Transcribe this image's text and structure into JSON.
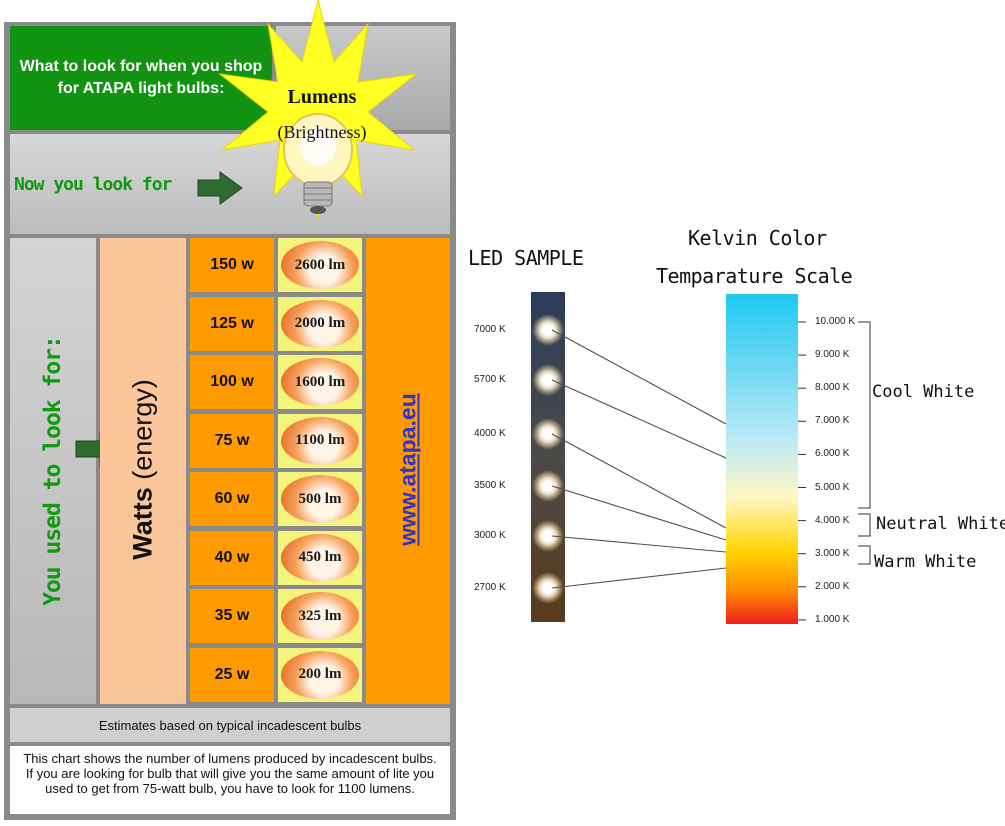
{
  "left_chart": {
    "header": "What to look for when you shop for ATAPA light bulbs:",
    "lumens_label": "Lumens",
    "brightness_label": "(Brightness)",
    "now_label": "Now you look for",
    "used_label": "You used to look for:",
    "watts_word": "Watts",
    "energy_word": "(energy)",
    "website": "www.atapa.eu",
    "rows": [
      {
        "watts": "150 w",
        "lumens": "2600 lm"
      },
      {
        "watts": "125 w",
        "lumens": "2000 lm"
      },
      {
        "watts": "100 w",
        "lumens": "1600 lm"
      },
      {
        "watts": "75 w",
        "lumens": "1100 lm"
      },
      {
        "watts": "60 w",
        "lumens": "500 lm"
      },
      {
        "watts": "40 w",
        "lumens": "450 lm"
      },
      {
        "watts": "35 w",
        "lumens": "325 lm"
      },
      {
        "watts": "25 w",
        "lumens": "200 lm"
      }
    ],
    "estimate_note": "Estimates based on typical incadescent bulbs",
    "description": "This chart shows the number of lumens produced by incadescent bulbs. If you are looking for bulb that will give you the same amount  of lite you used to get from 75-watt bulb, you have to look for 1100 lumens."
  },
  "right_chart": {
    "led_title": "LED SAMPLE",
    "scale_title_line1": "Kelvin Color",
    "scale_title_line2": "Temparature Scale",
    "led_samples": [
      "7000 K",
      "5700 K",
      "4000 K",
      "3500 K",
      "3000 K",
      "2700 K"
    ],
    "scale_ticks": [
      "10.000 K",
      "9.000 K",
      "8.000 K",
      "7.000 K",
      "6.000 K",
      "5.000 K",
      "4.000 K",
      "3.000 K",
      "2.000 K",
      "1.000 K"
    ],
    "groups": {
      "cool": "Cool White",
      "neutral": "Neutral White",
      "warm": "Warm White"
    },
    "colors": {
      "green": "#129312",
      "orange": "#ff9a00",
      "peach": "#fbc79a",
      "yellow": "#f5f47a",
      "link": "#2e35c8"
    }
  }
}
